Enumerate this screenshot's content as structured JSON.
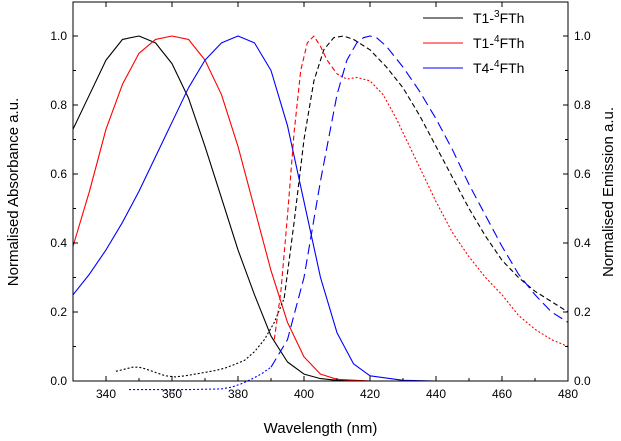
{
  "chart_data": {
    "type": "line",
    "title": "",
    "xlabel": "Wavelength (nm)",
    "ylabel_left": "Normalised Absorbance a.u.",
    "ylabel_right": "Normalised Emission a.u.",
    "xlim": [
      330,
      480
    ],
    "ylim": [
      0,
      1.05
    ],
    "x_ticks": [
      340,
      360,
      380,
      400,
      420,
      440,
      460,
      480
    ],
    "x_tick_labels": [
      "340",
      "360",
      "380",
      "400",
      "420",
      "440",
      "460",
      "480"
    ],
    "y_ticks": [
      0,
      0.2,
      0.4,
      0.6,
      0.8,
      1.0
    ],
    "y_tick_labels": [
      "0.0",
      "0.2",
      "0.4",
      "0.6",
      "0.8",
      "1.0"
    ],
    "grid": false,
    "legend": {
      "position": "top-right",
      "entries": [
        {
          "label_main": "T1-",
          "label_sup": "3",
          "label_end": "FTh",
          "color": "#000000"
        },
        {
          "label_main": "T1-",
          "label_sup": "4",
          "label_end": "FTh",
          "color": "#ff0000"
        },
        {
          "label_main": "T4-",
          "label_sup": "4",
          "label_end": "FTh",
          "color": "#0000ff"
        }
      ]
    },
    "series": [
      {
        "name": "T1-3FTh absorbance",
        "color": "#000000",
        "style": "solid",
        "x": [
          330,
          335,
          340,
          345,
          350,
          355,
          360,
          365,
          370,
          375,
          380,
          385,
          390,
          395,
          400,
          405,
          410,
          420,
          430,
          440
        ],
        "y": [
          0.73,
          0.83,
          0.93,
          0.99,
          1.0,
          0.98,
          0.92,
          0.82,
          0.68,
          0.53,
          0.38,
          0.25,
          0.13,
          0.055,
          0.02,
          0.007,
          0.002,
          0,
          0,
          0
        ]
      },
      {
        "name": "T1-4FTh absorbance",
        "color": "#ff0000",
        "style": "solid",
        "x": [
          330,
          335,
          340,
          345,
          350,
          355,
          360,
          365,
          370,
          375,
          380,
          385,
          390,
          395,
          400,
          405,
          410,
          420,
          430
        ],
        "y": [
          0.39,
          0.55,
          0.73,
          0.86,
          0.95,
          0.99,
          1.0,
          0.99,
          0.93,
          0.83,
          0.68,
          0.5,
          0.32,
          0.17,
          0.07,
          0.02,
          0.005,
          0,
          0
        ]
      },
      {
        "name": "T4-4FTh absorbance",
        "color": "#0000ff",
        "style": "solid",
        "x": [
          330,
          335,
          340,
          345,
          350,
          355,
          360,
          365,
          370,
          375,
          380,
          385,
          390,
          395,
          400,
          405,
          410,
          415,
          420,
          430,
          440
        ],
        "y": [
          0.25,
          0.31,
          0.38,
          0.46,
          0.55,
          0.65,
          0.75,
          0.85,
          0.93,
          0.98,
          1.0,
          0.98,
          0.9,
          0.74,
          0.52,
          0.3,
          0.14,
          0.05,
          0.015,
          0.002,
          0
        ]
      },
      {
        "name": "T1-3FTh emission",
        "color": "#000000",
        "style": "dotted",
        "x": [
          343,
          346,
          348,
          350,
          352,
          355,
          358,
          361,
          364,
          367,
          370,
          373,
          376,
          379,
          382,
          385,
          388,
          391,
          394
        ],
        "y": [
          0.028,
          0.035,
          0.04,
          0.04,
          0.035,
          0.025,
          0.015,
          0.012,
          0.015,
          0.02,
          0.025,
          0.03,
          0.037,
          0.048,
          0.06,
          0.085,
          0.12,
          0.17,
          0.24
        ]
      },
      {
        "name": "T1-3FTh emission",
        "color": "#000000",
        "style": "dashed",
        "x": [
          394,
          397,
          400,
          403,
          406,
          409,
          412,
          415,
          420,
          425,
          430,
          435,
          440,
          445,
          450,
          455,
          460,
          465,
          470,
          475,
          480
        ],
        "y": [
          0.24,
          0.46,
          0.7,
          0.87,
          0.96,
          0.995,
          1.0,
          0.99,
          0.96,
          0.91,
          0.85,
          0.77,
          0.68,
          0.59,
          0.5,
          0.42,
          0.35,
          0.3,
          0.26,
          0.23,
          0.2
        ]
      },
      {
        "name": "T1-4FTh emission",
        "color": "#ff0000",
        "style": "dashed",
        "x": [
          391,
          393,
          395,
          397,
          399,
          401,
          403,
          405,
          407,
          410
        ],
        "y": [
          0.12,
          0.26,
          0.48,
          0.72,
          0.9,
          0.98,
          1.0,
          0.97,
          0.93,
          0.89
        ]
      },
      {
        "name": "T1-4FTh emission",
        "color": "#ff0000",
        "style": "dotted",
        "x": [
          410,
          413,
          416,
          420,
          424,
          428,
          432,
          436,
          440,
          445,
          450,
          455,
          460,
          465,
          470,
          475,
          480
        ],
        "y": [
          0.89,
          0.875,
          0.88,
          0.87,
          0.83,
          0.76,
          0.68,
          0.6,
          0.52,
          0.43,
          0.36,
          0.3,
          0.25,
          0.19,
          0.15,
          0.12,
          0.1
        ]
      },
      {
        "name": "T4-4FTh emission",
        "color": "#0000ff",
        "style": "dotted",
        "x": [
          347,
          355,
          365,
          375,
          378,
          381,
          384,
          387,
          390
        ],
        "y": [
          -0.025,
          -0.025,
          -0.025,
          -0.023,
          -0.018,
          -0.008,
          0.005,
          0.02,
          0.04
        ]
      },
      {
        "name": "T4-4FTh emission",
        "color": "#0000ff",
        "style": "longdash",
        "x": [
          390,
          395,
          400,
          405,
          410,
          413,
          416,
          418,
          420,
          422,
          425,
          430,
          435,
          440,
          445,
          450,
          455,
          460,
          465,
          470,
          475,
          480
        ],
        "y": [
          0.04,
          0.12,
          0.3,
          0.58,
          0.83,
          0.93,
          0.98,
          0.995,
          1.0,
          0.995,
          0.97,
          0.91,
          0.84,
          0.76,
          0.67,
          0.57,
          0.48,
          0.39,
          0.31,
          0.25,
          0.2,
          0.17
        ]
      }
    ]
  }
}
